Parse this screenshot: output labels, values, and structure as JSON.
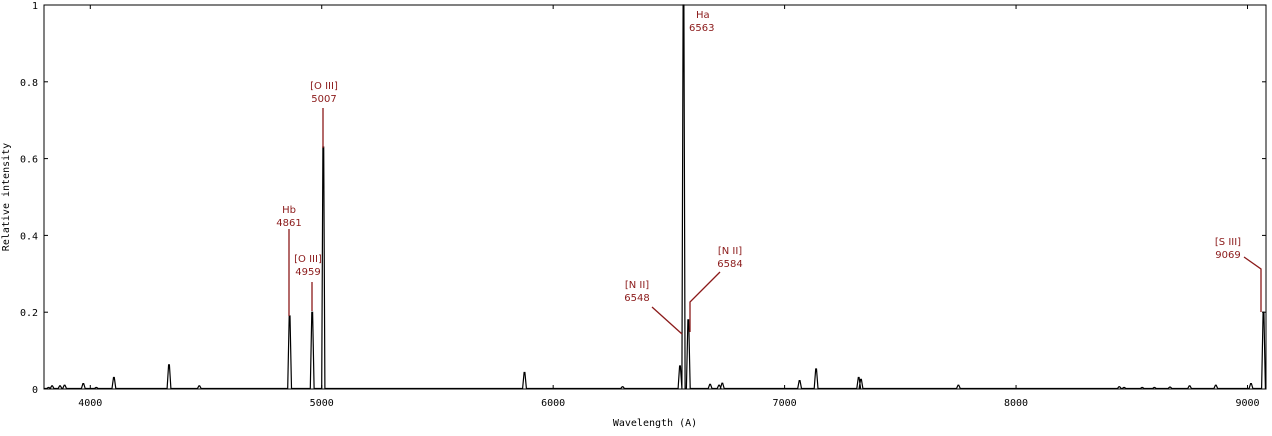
{
  "chart_data": {
    "type": "line",
    "title": "",
    "xlabel": "Wavelength (A)",
    "ylabel": "Relative intensity",
    "xlim": [
      3800,
      9080
    ],
    "ylim": [
      0,
      1
    ],
    "x_ticks": [
      "4000",
      "5000",
      "6000",
      "7000",
      "8000",
      "9000"
    ],
    "y_ticks": [
      "0",
      "0.2",
      "0.4",
      "0.6",
      "0.8",
      "1"
    ],
    "grid": false,
    "line_color": "#000000",
    "annotation_color": "#8b1a1a",
    "lines": [
      {
        "x": 3820,
        "height": 0.004
      },
      {
        "x": 3835,
        "height": 0.008
      },
      {
        "x": 3869,
        "height": 0.008
      },
      {
        "x": 3889,
        "height": 0.01
      },
      {
        "x": 3970,
        "height": 0.014
      },
      {
        "x": 4026,
        "height": 0.004
      },
      {
        "x": 4102,
        "height": 0.03
      },
      {
        "x": 4340,
        "height": 0.063
      },
      {
        "x": 4471,
        "height": 0.008
      },
      {
        "x": 4861,
        "height": 0.19
      },
      {
        "x": 4959,
        "height": 0.2
      },
      {
        "x": 5007,
        "height": 0.63
      },
      {
        "x": 5876,
        "height": 0.043
      },
      {
        "x": 6300,
        "height": 0.006
      },
      {
        "x": 6548,
        "height": 0.06
      },
      {
        "x": 6563,
        "height": 1.0
      },
      {
        "x": 6584,
        "height": 0.18
      },
      {
        "x": 6678,
        "height": 0.012
      },
      {
        "x": 6717,
        "height": 0.01
      },
      {
        "x": 6731,
        "height": 0.015
      },
      {
        "x": 7065,
        "height": 0.022
      },
      {
        "x": 7136,
        "height": 0.052
      },
      {
        "x": 7320,
        "height": 0.03
      },
      {
        "x": 7330,
        "height": 0.025
      },
      {
        "x": 7751,
        "height": 0.01
      },
      {
        "x": 8446,
        "height": 0.006
      },
      {
        "x": 8467,
        "height": 0.004
      },
      {
        "x": 8545,
        "height": 0.004
      },
      {
        "x": 8598,
        "height": 0.004
      },
      {
        "x": 8665,
        "height": 0.005
      },
      {
        "x": 8750,
        "height": 0.008
      },
      {
        "x": 8863,
        "height": 0.01
      },
      {
        "x": 9015,
        "height": 0.014
      },
      {
        "x": 9069,
        "height": 0.2
      }
    ],
    "annotations": [
      {
        "name": "Hb",
        "label": "Hb",
        "wavelength": "4861",
        "x": 4861,
        "y": 0.19
      },
      {
        "name": "O-III-4959",
        "label": "[O III]",
        "wavelength": "4959",
        "x": 4959,
        "y": 0.2
      },
      {
        "name": "O-III-5007",
        "label": "[O III]",
        "wavelength": "5007",
        "x": 5007,
        "y": 0.63
      },
      {
        "name": "N-II-6548",
        "label": "[N II]",
        "wavelength": "6548",
        "x": 6548,
        "y": 0.14
      },
      {
        "name": "Ha",
        "label": "Ha",
        "wavelength": "6563",
        "x": 6563,
        "y": 1.0
      },
      {
        "name": "N-II-6584",
        "label": "[N II]",
        "wavelength": "6584",
        "x": 6584,
        "y": 0.22
      },
      {
        "name": "S-III-9069",
        "label": "[S III]",
        "wavelength": "9069",
        "x": 9069,
        "y": 0.2
      }
    ]
  }
}
